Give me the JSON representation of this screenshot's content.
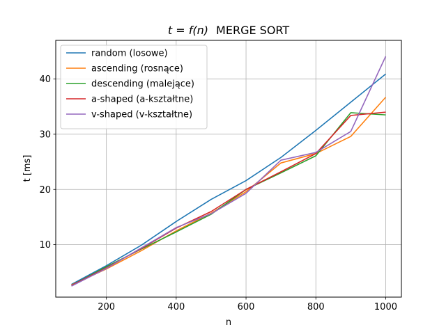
{
  "chart_data": {
    "type": "line",
    "title_prefix": "t = f(n)",
    "title_suffix": "MERGE SORT",
    "xlabel": "n",
    "ylabel": "t [ms]",
    "xlim": [
      55,
      1045
    ],
    "ylim": [
      0.5,
      47
    ],
    "xticks": [
      200,
      400,
      600,
      800,
      1000
    ],
    "yticks": [
      10,
      20,
      30,
      40
    ],
    "grid": true,
    "legend_position": "top-left",
    "x": [
      100,
      200,
      300,
      400,
      500,
      600,
      700,
      800,
      900,
      1000
    ],
    "series": [
      {
        "name": "random (losowe)",
        "color": "#1f77b4",
        "values": [
          2.8,
          6.2,
          9.9,
          14.2,
          18.2,
          21.6,
          25.8,
          30.7,
          35.8,
          40.9
        ]
      },
      {
        "name": "ascending (rosnące)",
        "color": "#ff7f0e",
        "values": [
          2.7,
          5.6,
          8.9,
          12.5,
          15.7,
          19.6,
          24.8,
          26.5,
          29.6,
          36.7
        ]
      },
      {
        "name": "descending (malejące)",
        "color": "#2ca02c",
        "values": [
          2.6,
          6.0,
          9.2,
          12.3,
          15.5,
          20.0,
          23.0,
          26.1,
          33.9,
          33.5
        ]
      },
      {
        "name": "a-shaped (a-kształtne)",
        "color": "#d62728",
        "values": [
          2.6,
          5.8,
          9.3,
          13.0,
          16.0,
          20.0,
          23.2,
          26.5,
          33.4,
          34.0
        ]
      },
      {
        "name": "v-shaped (v-kształtne)",
        "color": "#9467bd",
        "values": [
          2.5,
          5.7,
          9.4,
          13.1,
          15.6,
          19.3,
          25.3,
          26.7,
          30.5,
          44.1
        ]
      }
    ]
  }
}
